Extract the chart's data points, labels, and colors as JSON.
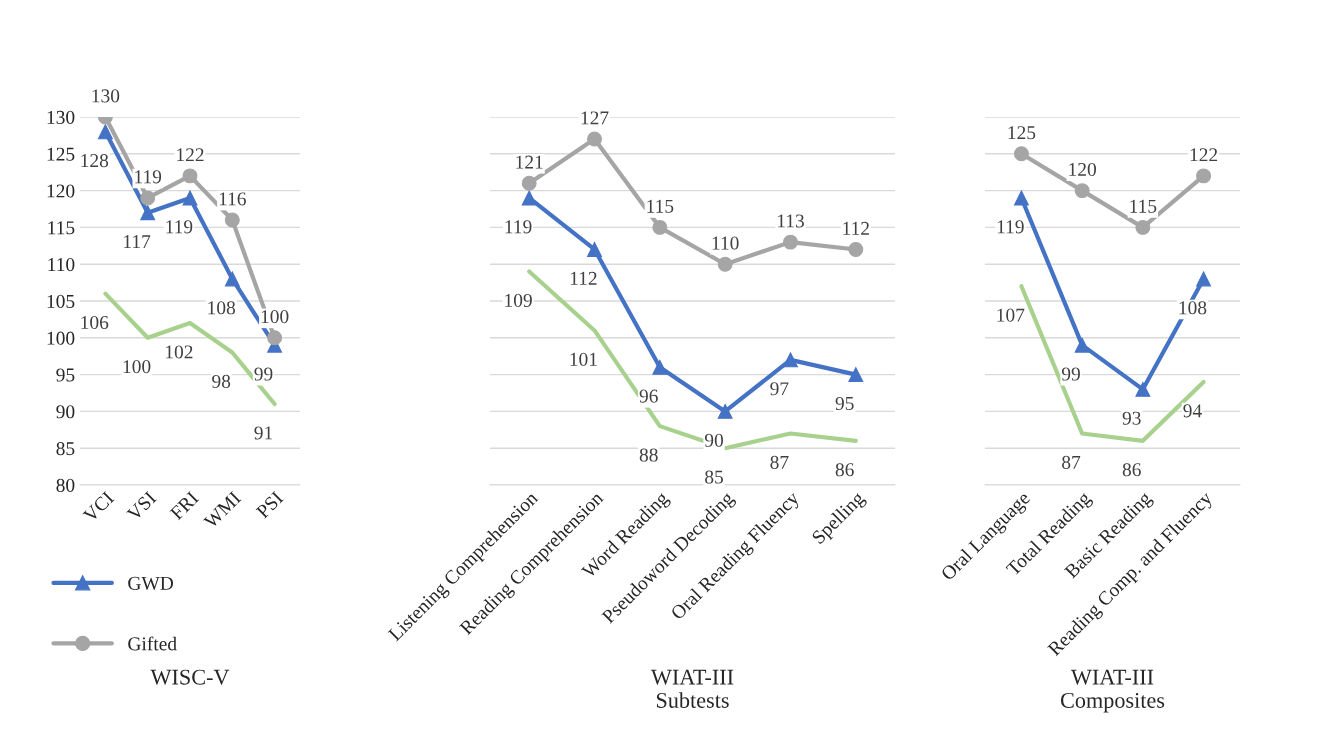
{
  "chart_data": [
    {
      "type": "line",
      "xlabel": "WISC-V",
      "categories": [
        "VCI",
        "VSI",
        "FRI",
        "WMI",
        "PSI"
      ],
      "ylim": [
        80,
        130
      ],
      "yticks": [
        80,
        85,
        90,
        95,
        100,
        105,
        110,
        115,
        120,
        125,
        130
      ],
      "grid": "y",
      "data_labels": true,
      "legend": "bottom left",
      "series": [
        {
          "name": "GWD",
          "color": "#4472c4",
          "marker": "triangle",
          "values": [
            128,
            117,
            119,
            108,
            99
          ]
        },
        {
          "name": "Gifted",
          "color": "#a5a5a5",
          "marker": "circle",
          "values": [
            130,
            119,
            122,
            116,
            100
          ]
        },
        {
          "color": "#a9d18e",
          "marker": "none",
          "values": [
            106,
            100,
            102,
            98,
            91
          ]
        }
      ]
    },
    {
      "type": "line",
      "xlabel": "WIAT-III\nSubtests",
      "categories": [
        "Listening Comprehension",
        "Reading Comprehension",
        "Word Reading",
        "Pseudoword Decoding",
        "Oral Reading Fluency",
        "Spelling"
      ],
      "ylim": [
        80,
        130
      ],
      "yticks": [
        80,
        85,
        90,
        95,
        100,
        105,
        110,
        115,
        120,
        125,
        130
      ],
      "grid": "y",
      "data_labels": true,
      "tick_labels": "x",
      "series": [
        {
          "color": "#4472c4",
          "marker": "triangle",
          "values": [
            119,
            112,
            96,
            90,
            97,
            95
          ]
        },
        {
          "color": "#a5a5a5",
          "marker": "circle",
          "values": [
            121,
            127,
            115,
            110,
            113,
            112
          ]
        },
        {
          "color": "#a9d18e",
          "marker": "none",
          "values": [
            109,
            101,
            88,
            85,
            87,
            86
          ]
        }
      ]
    },
    {
      "type": "line",
      "xlabel": "WIAT-III\nComposites",
      "categories": [
        "Oral Language",
        "Total Reading",
        "Basic Reading",
        "Reading Comp. and Fluency"
      ],
      "ylim": [
        80,
        130
      ],
      "yticks": [
        80,
        85,
        90,
        95,
        100,
        105,
        110,
        115,
        120,
        125,
        130
      ],
      "grid": "y",
      "data_labels": true,
      "tick_labels": "x",
      "series": [
        {
          "color": "#4472c4",
          "marker": "triangle",
          "values": [
            119,
            99,
            93,
            108
          ]
        },
        {
          "color": "#a5a5a5",
          "marker": "circle",
          "values": [
            125,
            120,
            115,
            122
          ]
        },
        {
          "color": "#a9d18e",
          "marker": "none",
          "values": [
            107,
            87,
            86,
            94
          ]
        }
      ]
    }
  ]
}
